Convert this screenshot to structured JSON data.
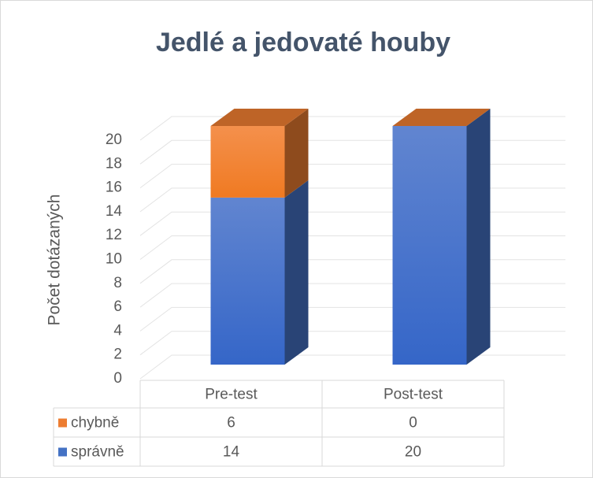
{
  "chart_data": {
    "type": "bar3d_stacked",
    "title": "Jedlé a jedovaté houby",
    "y_label": "Počet dotázaných",
    "categories": [
      "Pre-test",
      "Post-test"
    ],
    "series": [
      {
        "name": "chybně",
        "color": "#ed7d31",
        "values": [
          6,
          0
        ]
      },
      {
        "name": "správně",
        "color": "#4472c4",
        "values": [
          14,
          20
        ]
      }
    ],
    "ylim": [
      0,
      20
    ],
    "yticks": [
      0,
      2,
      4,
      6,
      8,
      10,
      12,
      14,
      16,
      18,
      20
    ],
    "grid": true,
    "data_table": true
  }
}
